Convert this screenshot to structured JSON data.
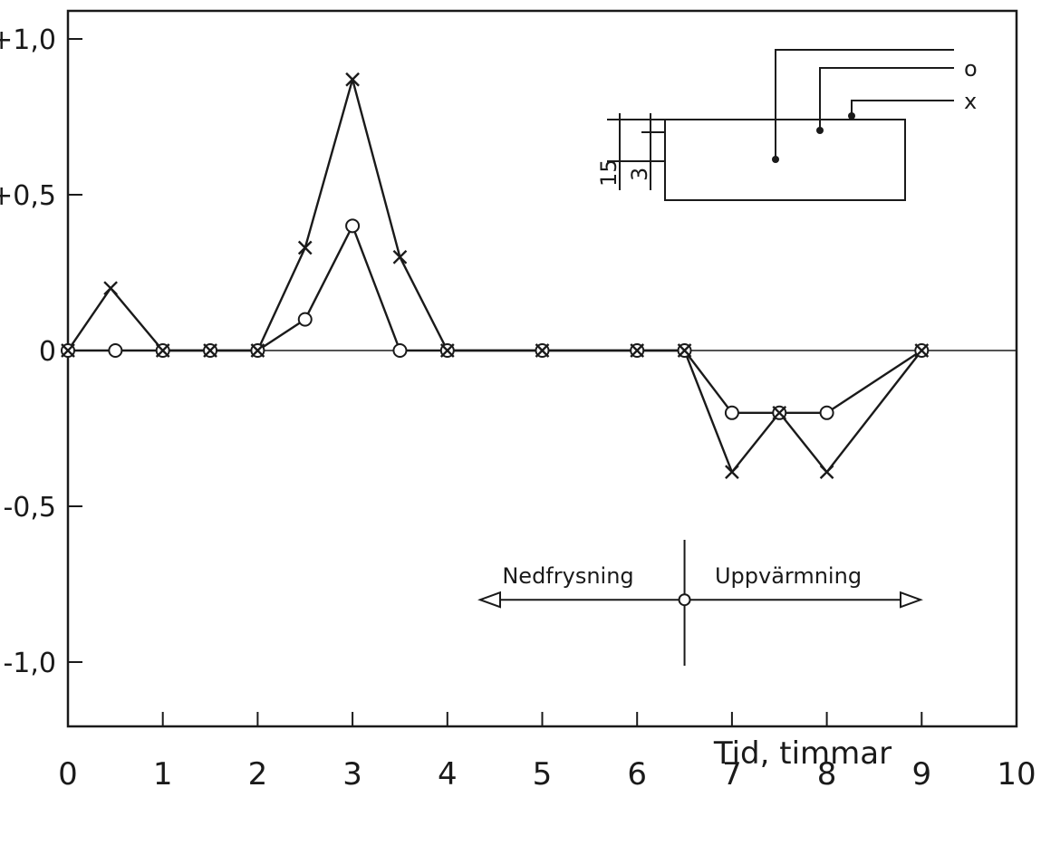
{
  "chart_data": {
    "type": "line",
    "title": "",
    "xlabel": "Tid, timmar",
    "ylabel": "",
    "xlim": [
      0,
      10
    ],
    "ylim": [
      -1.2,
      1.1
    ],
    "x_ticks": [
      {
        "value": 0,
        "label": "0"
      },
      {
        "value": 1,
        "label": "1"
      },
      {
        "value": 2,
        "label": "2"
      },
      {
        "value": 3,
        "label": "3"
      },
      {
        "value": 4,
        "label": "4"
      },
      {
        "value": 5,
        "label": "5"
      },
      {
        "value": 6,
        "label": "6"
      },
      {
        "value": 7,
        "label": "7"
      },
      {
        "value": 8,
        "label": "8"
      },
      {
        "value": 9,
        "label": "9"
      },
      {
        "value": 10,
        "label": "10"
      }
    ],
    "y_ticks": [
      {
        "value": 1.0,
        "label": "+1,0"
      },
      {
        "value": 0.5,
        "label": "+0,5"
      },
      {
        "value": 0,
        "label": "0"
      },
      {
        "value": -0.5,
        "label": "-0,5"
      },
      {
        "value": -1.0,
        "label": "-1,0"
      }
    ],
    "grid": false,
    "series": [
      {
        "name": "o",
        "marker": "circle",
        "x": [
          0,
          0.5,
          1,
          1.5,
          2,
          2.5,
          3,
          3.5,
          4,
          5,
          6,
          6.5,
          7,
          7.5,
          8,
          9
        ],
        "y": [
          0,
          0,
          0,
          0,
          0,
          0.1,
          0.4,
          0,
          0,
          0,
          0,
          0,
          -0.2,
          -0.2,
          -0.2,
          0
        ]
      },
      {
        "name": "x",
        "marker": "cross",
        "x": [
          0,
          0.45,
          1,
          1.5,
          2,
          2.5,
          3,
          3.5,
          4,
          5,
          6,
          6.5,
          7,
          7.5,
          8,
          9
        ],
        "y": [
          0,
          0.2,
          0,
          0,
          0,
          0.33,
          0.87,
          0.3,
          0,
          0,
          0,
          0,
          -0.39,
          -0.2,
          -0.39,
          0
        ]
      }
    ],
    "annotations": {
      "phase_divider_x": 6.5,
      "phase_marker_y": -0.8,
      "phase_left": "Nedfrysning",
      "phase_right": "Uppvärmning",
      "inset_dim_outer": "15",
      "inset_dim_inner": "3",
      "inset_label_o": "o",
      "inset_label_x": "x"
    }
  }
}
